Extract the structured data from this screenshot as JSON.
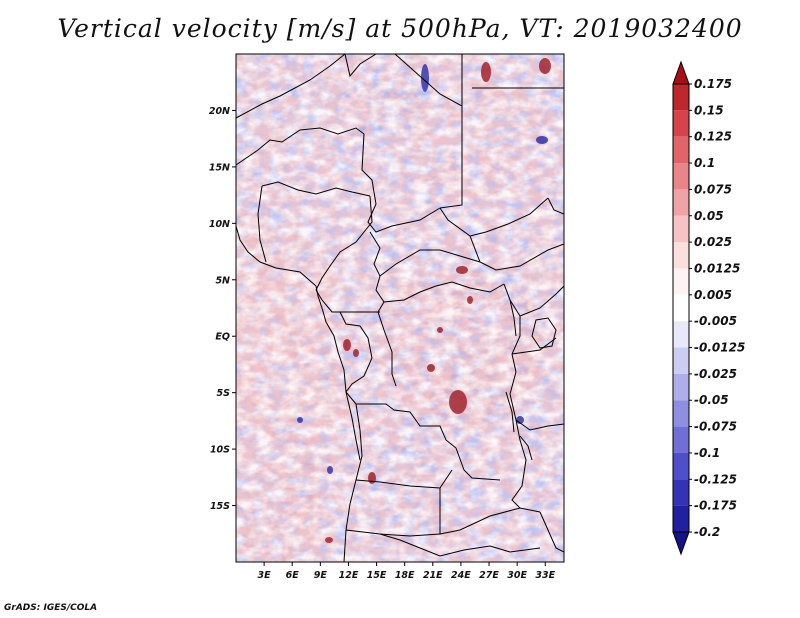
{
  "title": "Vertical velocity [m/s] at 500hPa, VT: 2019032400",
  "credit": "GrADS: IGES/COLA",
  "map": {
    "variable": "vertical velocity",
    "units": "m/s",
    "level": "500hPa",
    "valid_time": "2019032400",
    "lon_range": [
      0,
      35
    ],
    "lat_range": [
      -20,
      25
    ],
    "lon_ticks": [
      "3E",
      "6E",
      "9E",
      "12E",
      "15E",
      "18E",
      "21E",
      "24E",
      "27E",
      "30E",
      "33E"
    ],
    "lat_ticks": [
      "20N",
      "15N",
      "10N",
      "5N",
      "EQ",
      "5S",
      "10S",
      "15S"
    ]
  },
  "colorbar": {
    "levels": [
      "0.175",
      "0.15",
      "0.125",
      "0.1",
      "0.075",
      "0.05",
      "0.025",
      "0.0125",
      "0.005",
      "-0.005",
      "-0.0125",
      "-0.025",
      "-0.05",
      "-0.075",
      "-0.1",
      "-0.125",
      "-0.175",
      "-0.2"
    ],
    "colors": [
      "#a50f15",
      "#c0272d",
      "#d6434a",
      "#e06468",
      "#e98487",
      "#f0a3a5",
      "#f6c2c3",
      "#fbdede",
      "#fff2f2",
      "#ffffff",
      "#e8e8fa",
      "#cccdf3",
      "#adaeeb",
      "#8f8fe1",
      "#6f6fd6",
      "#4f4fca",
      "#3333b7",
      "#2020a0",
      "#14148a"
    ]
  }
}
